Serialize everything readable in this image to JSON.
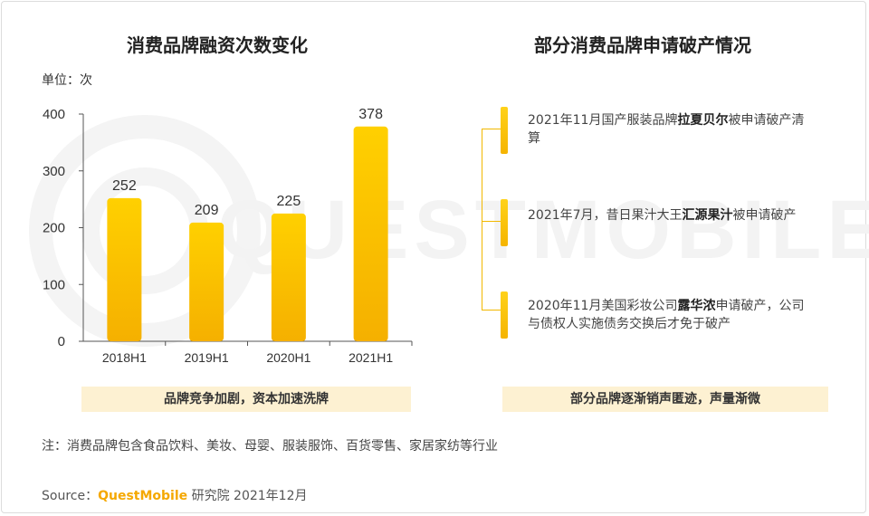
{
  "left": {
    "title": "消费品牌融资次数变化",
    "unit": "单位：次",
    "caption": "品牌竞争加剧，资本加速洗牌"
  },
  "right": {
    "title": "部分消费品牌申请破产情况",
    "caption": "部分品牌逐渐销声匿迹，声量渐微",
    "events": [
      {
        "pre": "2021年11月国产服装品牌",
        "bold": "拉夏贝尔",
        "post": "被申请破产清算"
      },
      {
        "pre": "2021年7月，昔日果汁大王",
        "bold": "汇源果汁",
        "post": "被申请破产"
      },
      {
        "pre": "2020年11月美国彩妆公司",
        "bold": "露华浓",
        "post": "申请破产，公司与债权人实施债务交换后才免于破产"
      }
    ]
  },
  "chart_data": {
    "type": "bar",
    "categories": [
      "2018H1",
      "2019H1",
      "2020H1",
      "2021H1"
    ],
    "values": [
      252,
      209,
      225,
      378
    ],
    "title": "消费品牌融资次数变化",
    "xlabel": "",
    "ylabel": "单位：次",
    "ylim": [
      0,
      400
    ],
    "yticks": [
      0,
      100,
      200,
      300,
      400
    ],
    "bar_color_top": "#ffd000",
    "bar_color_bottom": "#f5b000",
    "grid": false
  },
  "footer": {
    "note": "注：消费品牌包含食品饮料、美妆、母婴、服装服饰、百货零售、家居家纺等行业",
    "source_prefix": "Source：",
    "source_brand": "QuestMobile",
    "source_suffix": " 研究院 2021年12月"
  },
  "watermark": {
    "text": "QUESTMOBILE"
  }
}
